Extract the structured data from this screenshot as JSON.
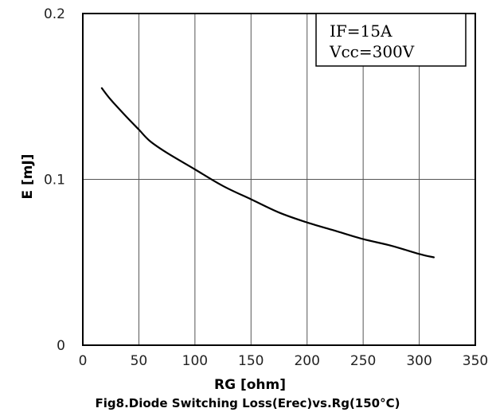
{
  "chart_data": {
    "type": "line",
    "title": "Fig8.Diode Switching Loss(Erec)vs.Rg(150°C)",
    "xlabel": "RG  [ohm]",
    "ylabel": "E [mJ]",
    "xlim": [
      0,
      350
    ],
    "ylim": [
      0,
      0.2
    ],
    "x_ticks": [
      0,
      50,
      100,
      150,
      200,
      250,
      300,
      350
    ],
    "x_tick_labels": [
      "0",
      "50",
      "100",
      "150",
      "200",
      "250",
      "300",
      "350"
    ],
    "y_ticks": [
      0,
      0.1,
      0.2
    ],
    "y_tick_labels": [
      "0",
      "0.1",
      "0.2"
    ],
    "grid": true,
    "annotation_lines": [
      "IF=15A",
      "Vcc=300V"
    ],
    "annotation_position": "top-right",
    "series": [
      {
        "x": [
          17,
          25,
          40,
          50,
          60,
          75,
          100,
          125,
          150,
          175,
          200,
          225,
          250,
          275,
          300,
          313
        ],
        "y": [
          0.155,
          0.148,
          0.137,
          0.13,
          0.123,
          0.116,
          0.106,
          0.096,
          0.088,
          0.08,
          0.074,
          0.069,
          0.064,
          0.06,
          0.055,
          0.053
        ]
      }
    ],
    "line_color": "#000000"
  }
}
